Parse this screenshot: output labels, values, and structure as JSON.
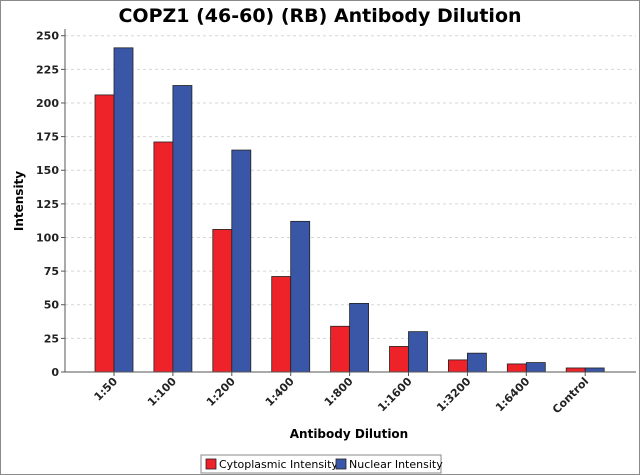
{
  "chart_data": {
    "type": "bar",
    "title": "COPZ1 (46-60) (RB) Antibody Dilution",
    "xlabel": "Antibody Dilution",
    "ylabel": "Intensity",
    "ylim": [
      0,
      255
    ],
    "yticks": [
      0,
      25,
      50,
      75,
      100,
      125,
      150,
      175,
      200,
      225,
      250
    ],
    "grid": true,
    "legend_position": "bottom-center",
    "categories": [
      "1:50",
      "1:100",
      "1:200",
      "1:400",
      "1:800",
      "1:1600",
      "1:3200",
      "1:6400",
      "Control"
    ],
    "series": [
      {
        "name": "Cytoplasmic Intensity",
        "color": "#ee2229",
        "values": [
          206,
          171,
          106,
          71,
          34,
          19,
          9,
          6,
          3
        ]
      },
      {
        "name": "Nuclear Intensity",
        "color": "#3a57a7",
        "values": [
          241,
          213,
          165,
          112,
          51,
          30,
          14,
          7,
          3
        ]
      }
    ]
  }
}
